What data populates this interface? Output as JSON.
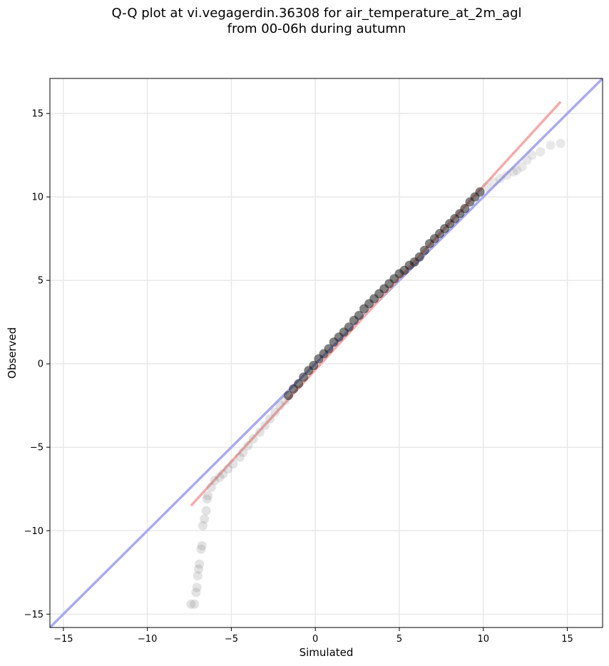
{
  "chart_data": {
    "type": "scatter",
    "title_lines": [
      "Q-Q plot at vi.vegagerdin.36308 for air_temperature_at_2m_agl",
      "from 00-06h during autumn"
    ],
    "xlabel": "Simulated",
    "ylabel": "Observed",
    "xlim": [
      -15.8,
      17.1
    ],
    "ylim": [
      -15.8,
      17.1
    ],
    "xticks": [
      -15,
      -10,
      -5,
      0,
      5,
      10,
      15
    ],
    "yticks": [
      -15,
      -10,
      -5,
      0,
      5,
      10,
      15
    ],
    "xtick_labels": [
      "−15",
      "−10",
      "−5",
      "0",
      "5",
      "10",
      "15"
    ],
    "ytick_labels": [
      "−15",
      "−10",
      "−5",
      "0",
      "5",
      "10",
      "15"
    ],
    "grid": true,
    "colors": {
      "reference_line": "#aaaaf0",
      "fit_line": "#f5aaaa",
      "points_tail": "#808080",
      "points_core": "#1a1a1a"
    },
    "reference_line": {
      "x": [
        -15.8,
        17.1
      ],
      "y": [
        -15.8,
        17.1
      ]
    },
    "fit_line": {
      "x": [
        -7.4,
        14.6
      ],
      "y": [
        -8.5,
        15.7
      ]
    },
    "tail_points_low": [
      [
        -7.4,
        -14.4
      ],
      [
        -7.2,
        -14.4
      ],
      [
        -7.1,
        -13.7
      ],
      [
        -7.05,
        -13.4
      ],
      [
        -7.0,
        -12.7
      ],
      [
        -6.95,
        -12.3
      ],
      [
        -6.9,
        -12.0
      ],
      [
        -6.8,
        -11.1
      ],
      [
        -6.75,
        -10.9
      ],
      [
        -6.7,
        -9.7
      ],
      [
        -6.6,
        -9.3
      ],
      [
        -6.5,
        -8.8
      ],
      [
        -6.45,
        -8.1
      ],
      [
        -6.4,
        -7.9
      ],
      [
        -6.2,
        -7.4
      ],
      [
        -6.0,
        -7.0
      ],
      [
        -5.7,
        -6.8
      ],
      [
        -5.5,
        -6.6
      ],
      [
        -5.2,
        -6.3
      ],
      [
        -4.9,
        -6.0
      ],
      [
        -4.5,
        -5.6
      ],
      [
        -4.3,
        -5.3
      ],
      [
        -4.0,
        -4.9
      ],
      [
        -3.7,
        -4.5
      ],
      [
        -3.3,
        -4.1
      ],
      [
        -3.0,
        -3.7
      ],
      [
        -2.7,
        -3.3
      ],
      [
        -2.4,
        -2.9
      ],
      [
        -2.1,
        -2.5
      ],
      [
        -1.8,
        -2.2
      ]
    ],
    "tail_points_high": [
      [
        10.2,
        10.6
      ],
      [
        10.6,
        10.9
      ],
      [
        11.0,
        11.1
      ],
      [
        11.4,
        11.3
      ],
      [
        11.8,
        11.5
      ],
      [
        12.0,
        11.6
      ],
      [
        12.3,
        11.8
      ],
      [
        12.6,
        12.2
      ],
      [
        12.9,
        12.5
      ],
      [
        13.4,
        12.7
      ],
      [
        14.0,
        13.1
      ],
      [
        14.6,
        13.2
      ]
    ],
    "core_points": [
      [
        -1.6,
        -1.9
      ],
      [
        -1.3,
        -1.5
      ],
      [
        -1.0,
        -1.2
      ],
      [
        -0.7,
        -0.8
      ],
      [
        -0.4,
        -0.4
      ],
      [
        -0.1,
        -0.1
      ],
      [
        0.2,
        0.3
      ],
      [
        0.5,
        0.6
      ],
      [
        0.8,
        0.9
      ],
      [
        1.1,
        1.3
      ],
      [
        1.4,
        1.6
      ],
      [
        1.7,
        1.9
      ],
      [
        2.0,
        2.2
      ],
      [
        2.3,
        2.6
      ],
      [
        2.6,
        2.9
      ],
      [
        2.9,
        3.3
      ],
      [
        3.2,
        3.6
      ],
      [
        3.5,
        3.9
      ],
      [
        3.8,
        4.2
      ],
      [
        4.1,
        4.5
      ],
      [
        4.4,
        4.8
      ],
      [
        4.7,
        5.1
      ],
      [
        5.0,
        5.4
      ],
      [
        5.3,
        5.6
      ],
      [
        5.6,
        5.9
      ],
      [
        5.9,
        6.1
      ],
      [
        6.2,
        6.4
      ],
      [
        6.5,
        6.8
      ],
      [
        6.8,
        7.2
      ],
      [
        7.1,
        7.5
      ],
      [
        7.4,
        7.8
      ],
      [
        7.7,
        8.1
      ],
      [
        8.0,
        8.4
      ],
      [
        8.3,
        8.7
      ],
      [
        8.6,
        9.0
      ],
      [
        8.9,
        9.3
      ],
      [
        9.2,
        9.7
      ],
      [
        9.5,
        10.0
      ],
      [
        9.8,
        10.3
      ]
    ]
  }
}
